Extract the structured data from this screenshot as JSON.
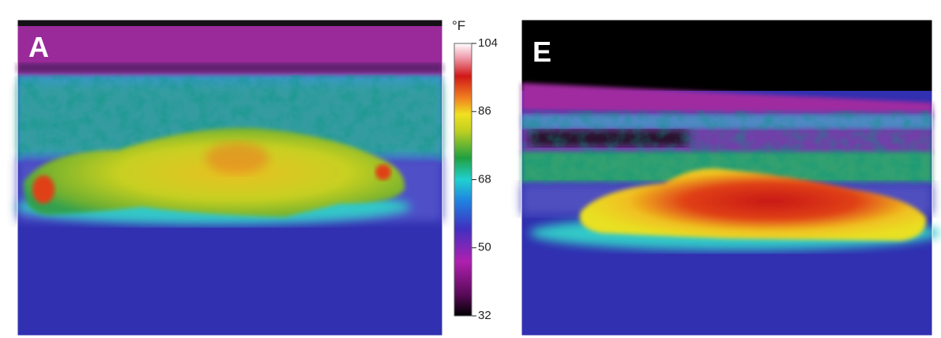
{
  "panels": [
    {
      "label": "A"
    },
    {
      "label": "E"
    }
  ],
  "colorbar": {
    "unit": "°F",
    "ticks": [
      104,
      86,
      68,
      50,
      32
    ]
  }
}
